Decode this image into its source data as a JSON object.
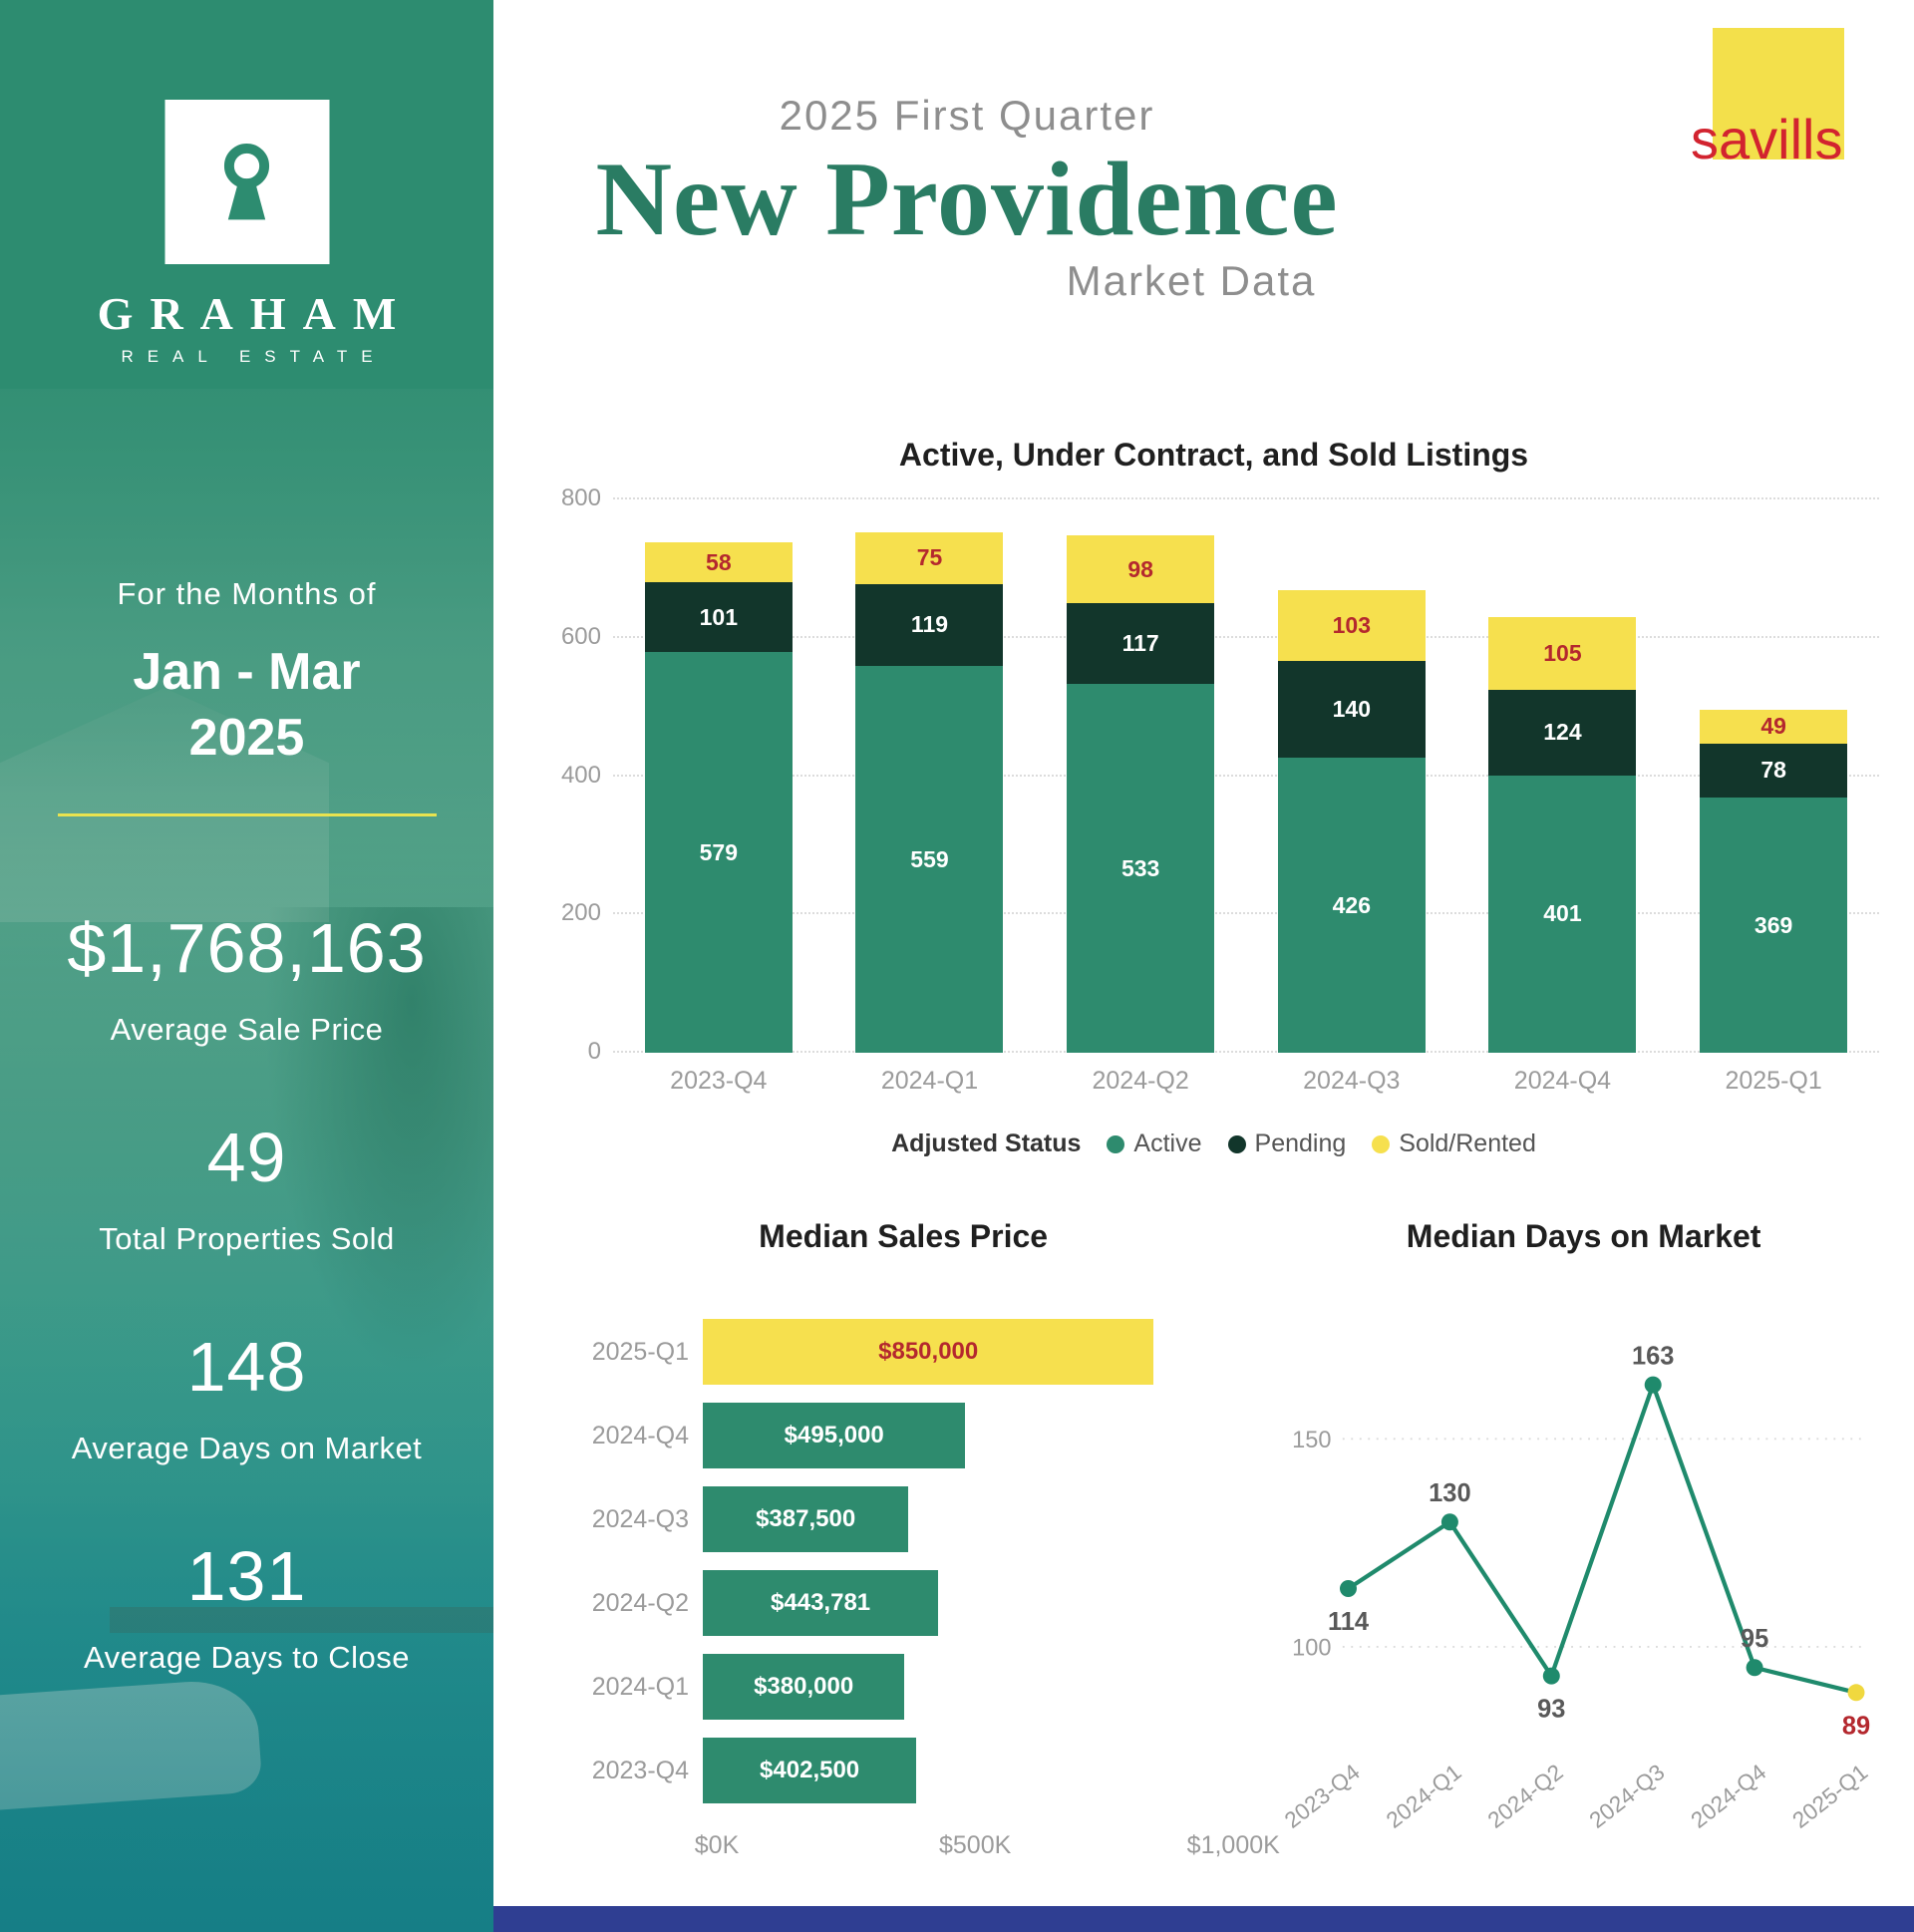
{
  "colors": {
    "sidebar_green": "#2d8c70",
    "bar_active": "#2e8b6e",
    "bar_pending": "#12362b",
    "bar_sold": "#f6e04e",
    "accent_red": "#b4282e",
    "title_green": "#2a7c63",
    "savills_red": "#d2232f",
    "savills_yellow": "#f3e04b",
    "axis_gray": "#9b9b9b",
    "footer_blue": "#2f3e92",
    "divider_yellow": "#e9e34f"
  },
  "sidebar": {
    "brand": {
      "name": "GRAHAM",
      "tagline": "REAL ESTATE"
    },
    "period": {
      "intro": "For the Months of",
      "range": "Jan - Mar",
      "year": "2025"
    },
    "stats": [
      {
        "value": "$1,768,163",
        "label": "Average Sale Price"
      },
      {
        "value": "49",
        "label": "Total Properties Sold"
      },
      {
        "value": "148",
        "label": "Average Days on Market"
      },
      {
        "value": "131",
        "label": "Average Days to Close"
      }
    ]
  },
  "header": {
    "quarter": "2025 First Quarter",
    "title": "New Providence",
    "subtitle": "Market Data",
    "partner": "savills"
  },
  "chart_data": [
    {
      "type": "bar",
      "stacked": true,
      "title": "Active, Under Contract, and Sold Listings",
      "categories": [
        "2023-Q4",
        "2024-Q1",
        "2024-Q2",
        "2024-Q3",
        "2024-Q4",
        "2025-Q1"
      ],
      "series": [
        {
          "name": "Active",
          "color": "#2e8b6e",
          "label_color": "#ffffff",
          "values": [
            579,
            559,
            533,
            426,
            401,
            369
          ]
        },
        {
          "name": "Pending",
          "color": "#12362b",
          "label_color": "#ffffff",
          "values": [
            101,
            119,
            117,
            140,
            124,
            78
          ]
        },
        {
          "name": "Sold/Rented",
          "color": "#f6e04e",
          "label_color": "#b4282e",
          "values": [
            58,
            75,
            98,
            103,
            105,
            49
          ]
        }
      ],
      "legend_title": "Adjusted Status",
      "legend_position": "bottom",
      "ylim": [
        0,
        800
      ],
      "yticks": [
        0,
        200,
        400,
        600,
        800
      ],
      "grid": true
    },
    {
      "type": "bar",
      "orientation": "horizontal",
      "title": "Median Sales Price",
      "categories": [
        "2025-Q1",
        "2024-Q4",
        "2024-Q3",
        "2024-Q2",
        "2024-Q1",
        "2023-Q4"
      ],
      "values": [
        850000,
        495000,
        387500,
        443781,
        380000,
        402500
      ],
      "value_labels": [
        "$850,000",
        "$495,000",
        "$387,500",
        "$443,781",
        "$380,000",
        "$402,500"
      ],
      "xlim": [
        0,
        1000000
      ],
      "xtick_labels": [
        "$0K",
        "$500K",
        "$1,000K"
      ],
      "bar_color": "#2e8b6e",
      "bar_text_color": "#ffffff",
      "highlight_index": 0,
      "highlight_color": "#f6e04e",
      "highlight_text_color": "#b4282e"
    },
    {
      "type": "line",
      "title": "Median Days on Market",
      "x": [
        "2023-Q4",
        "2024-Q1",
        "2024-Q2",
        "2024-Q3",
        "2024-Q4",
        "2025-Q1"
      ],
      "values": [
        114,
        130,
        93,
        163,
        95,
        89
      ],
      "label_positions": [
        "below",
        "above",
        "below",
        "above",
        "above",
        "below"
      ],
      "ylim": [
        80,
        175
      ],
      "yticks": [
        100,
        150
      ],
      "grid": true,
      "line_color": "#1f8a6c",
      "label_color": "#595959",
      "highlight_index": 5,
      "highlight_point_color": "#f0d83f",
      "highlight_label_color": "#b4282e"
    }
  ]
}
